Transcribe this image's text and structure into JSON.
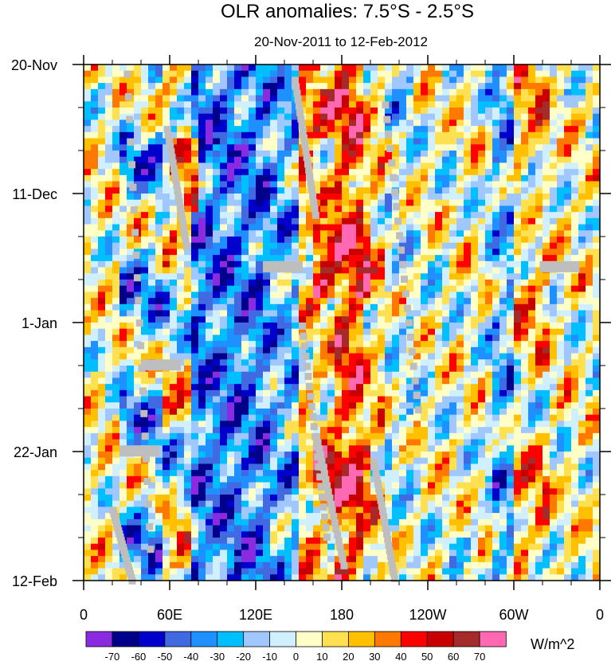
{
  "chart_data": {
    "type": "heatmap",
    "title": "OLR anomalies: 7.5°S - 2.5°S",
    "subtitle": "20-Nov-2011 to 12-Feb-2012",
    "xlabel": "",
    "ylabel": "",
    "x_ticks": [
      "0",
      "60E",
      "120E",
      "180",
      "120W",
      "60W",
      "0"
    ],
    "x_tick_lon": [
      0,
      60,
      120,
      180,
      240,
      300,
      360
    ],
    "y_ticks": [
      "20-Nov",
      "11-Dec",
      "1-Jan",
      "22-Jan",
      "12-Feb"
    ],
    "y_tick_day": [
      0,
      21,
      42,
      63,
      84
    ],
    "day_range": [
      0,
      84
    ],
    "lon_range": [
      0,
      360
    ],
    "colorbar": {
      "unit": "W/m^2",
      "levels": [
        "-70",
        "-60",
        "-50",
        "-40",
        "-30",
        "-20",
        "-10",
        "0",
        "10",
        "20",
        "30",
        "40",
        "50",
        "60",
        "70"
      ],
      "colors": [
        "#8a2be2",
        "#00008b",
        "#0000cd",
        "#4169e1",
        "#1e90ff",
        "#00bfff",
        "#a0c8ff",
        "#d0f0ff",
        "#ffffc8",
        "#ffe050",
        "#ffc000",
        "#ff7800",
        "#ff0000",
        "#c80000",
        "#a52a2a",
        "#ff69b4"
      ]
    },
    "missing_color": "#bebebe",
    "description_bands": [
      {
        "lon_start": 0,
        "lon_end": 60,
        "mean": -15
      },
      {
        "lon_start": 60,
        "lon_end": 150,
        "mean": -35
      },
      {
        "lon_start": 150,
        "lon_end": 200,
        "mean": 25
      },
      {
        "lon_start": 200,
        "lon_end": 290,
        "mean": 0
      },
      {
        "lon_start": 290,
        "lon_end": 360,
        "mean": 5
      }
    ]
  }
}
